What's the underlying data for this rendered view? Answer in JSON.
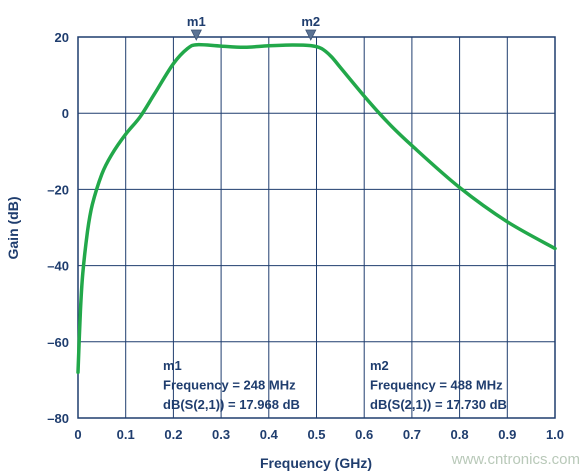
{
  "chart_data": {
    "type": "line",
    "xlabel": "Frequency (GHz)",
    "ylabel": "Gain (dB)",
    "xlim": [
      0,
      1.0
    ],
    "ylim": [
      -80,
      20
    ],
    "xticks": [
      0,
      0.1,
      0.2,
      0.3,
      0.4,
      0.5,
      0.6,
      0.7,
      0.8,
      0.9,
      1.0
    ],
    "xtick_labels": [
      "0",
      "0.1",
      "0.2",
      "0.3",
      "0.4",
      "0.5",
      "0.6",
      "0.7",
      "0.8",
      "0.9",
      "1.0"
    ],
    "yticks": [
      20,
      0,
      -20,
      -40,
      -60,
      -80
    ],
    "ytick_labels": [
      "20",
      "0",
      "–20",
      "–40",
      "–60",
      "–80"
    ],
    "grid": true,
    "line_color": "#22a84a",
    "series": [
      {
        "x": [
          0.0,
          0.005,
          0.01,
          0.02,
          0.03,
          0.05,
          0.07,
          0.1,
          0.13,
          0.16,
          0.2,
          0.23,
          0.25,
          0.3,
          0.35,
          0.4,
          0.45,
          0.488,
          0.51,
          0.53,
          0.55,
          0.6,
          0.65,
          0.7,
          0.8,
          0.9,
          1.0
        ],
        "y": [
          -68,
          -52,
          -42,
          -31,
          -24,
          -16,
          -11,
          -5.5,
          -1,
          5,
          13,
          17,
          17.968,
          17.6,
          17.3,
          17.7,
          17.9,
          17.73,
          17.0,
          15.0,
          12.0,
          4.5,
          -2.5,
          -8.5,
          -19.5,
          -28.5,
          -35.5
        ]
      }
    ],
    "markers": [
      {
        "name": "m1",
        "x": 0.248,
        "y": 17.968,
        "lines": [
          "m1",
          "Frequency = 248 MHz",
          "dB(S(2,1)) = 17.968 dB"
        ]
      },
      {
        "name": "m2",
        "x": 0.488,
        "y": 17.73,
        "lines": [
          "m2",
          "Frequency = 488 MHz",
          "dB(S(2,1)) = 17.730 dB"
        ]
      }
    ]
  },
  "watermark": "www.cntronics.com"
}
